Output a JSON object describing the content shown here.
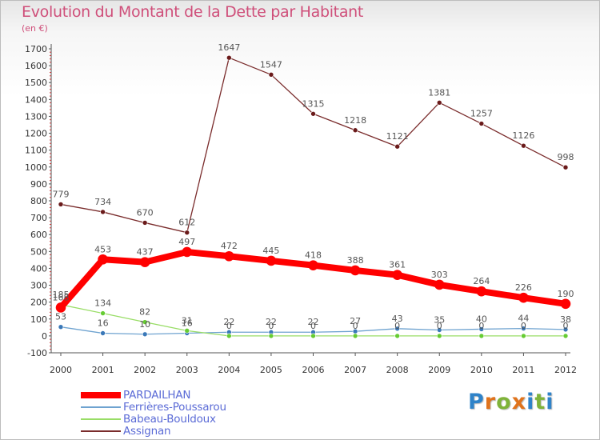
{
  "title": "Evolution du Montant de la Dette par Habitant",
  "subtitle": "(en €)",
  "brand": {
    "letters": [
      "P",
      "r",
      "o",
      "x",
      "i",
      "t",
      "i"
    ],
    "colors": [
      "#2f83c9",
      "#e0731c",
      "#7fb33a",
      "#e0731c",
      "#2f83c9",
      "#7fb33a",
      "#2f83c9"
    ]
  },
  "chart_data": {
    "type": "line",
    "title": "Evolution du Montant de la Dette par Habitant",
    "ylabel": "(en €)",
    "xlabel": "",
    "ylim": [
      -100,
      1700
    ],
    "yticks": [
      -100,
      0,
      100,
      200,
      300,
      400,
      500,
      600,
      700,
      800,
      900,
      1000,
      1100,
      1200,
      1300,
      1400,
      1500,
      1600,
      1700
    ],
    "categories": [
      "2000",
      "2001",
      "2002",
      "2003",
      "2004",
      "2005",
      "2006",
      "2007",
      "2008",
      "2009",
      "2010",
      "2011",
      "2012"
    ],
    "grid": false,
    "legend_position": "bottom-left",
    "series": [
      {
        "name": "PARDAILHAN",
        "color": "#ff0000",
        "marker": "#ff0000",
        "values": [
          168,
          453,
          437,
          497,
          472,
          445,
          418,
          388,
          361,
          303,
          264,
          226,
          190
        ],
        "labels": [
          "168",
          "453",
          "437",
          "497",
          "472",
          "445",
          "418",
          "388",
          "361",
          "303",
          "264",
          "226",
          "190"
        ]
      },
      {
        "name": "Ferrières-Poussarou",
        "color": "#6fa3d0",
        "marker": "#3a78b8",
        "values": [
          53,
          16,
          10,
          16,
          22,
          22,
          22,
          27,
          43,
          35,
          40,
          44,
          38
        ],
        "labels": [
          "53",
          "16",
          "10",
          "16",
          "22",
          "22",
          "22",
          "27",
          "43",
          "35",
          "40",
          "44",
          "38"
        ]
      },
      {
        "name": "Babeau-Bouldoux",
        "color": "#99dd66",
        "marker": "#66cc33",
        "values": [
          185,
          134,
          82,
          31,
          0,
          0,
          0,
          0,
          0,
          0,
          0,
          0,
          0
        ],
        "labels": [
          "185",
          "134",
          "82",
          "31",
          "0",
          "0",
          "0",
          "0",
          "0",
          "0",
          "0",
          "0",
          "0"
        ]
      },
      {
        "name": "Assignan",
        "color": "#7a2c2c",
        "marker": "#6a1a1a",
        "values": [
          779,
          734,
          670,
          612,
          1647,
          1547,
          1315,
          1218,
          1121,
          1381,
          1257,
          1126,
          998
        ],
        "labels": [
          "779",
          "734",
          "670",
          "612",
          "1647",
          "1547",
          "1315",
          "1218",
          "1121",
          "1381",
          "1257",
          "1126",
          "998"
        ]
      }
    ]
  }
}
